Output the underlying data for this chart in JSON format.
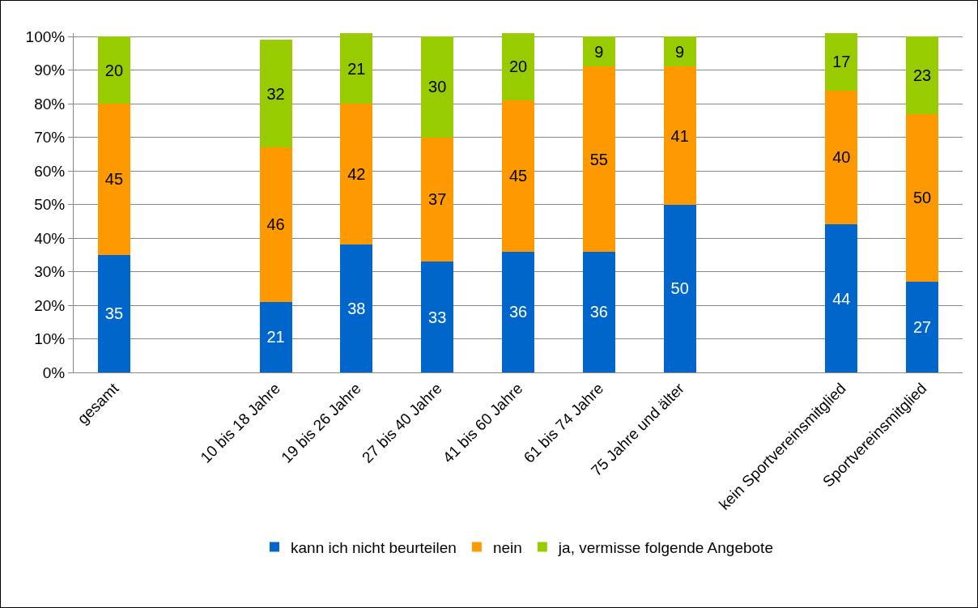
{
  "chart_data": {
    "type": "bar",
    "stacked": true,
    "categories": [
      "gesamt",
      null,
      "10 bis 18 Jahre",
      "19 bis 26 Jahre",
      "27 bis 40 Jahre",
      "41 bis 60 Jahre",
      "61 bis 74 Jahre",
      "75 Jahre und älter",
      null,
      "kein Sportvereinsmitglied",
      "Sportvereinsmitglied"
    ],
    "series": [
      {
        "name": "kann ich nicht beurteilen",
        "color": "#0066cc",
        "values": [
          35,
          null,
          21,
          38,
          33,
          36,
          36,
          50,
          null,
          44,
          27
        ],
        "value_labels": [
          "35",
          null,
          "21",
          "38",
          "33",
          "36",
          "36",
          "50",
          null,
          "44",
          "27"
        ]
      },
      {
        "name": "nein",
        "color": "#ff9900",
        "values": [
          45,
          null,
          46,
          42,
          37,
          45,
          55,
          41,
          null,
          40,
          50
        ],
        "value_labels": [
          "45",
          null,
          "46",
          "42",
          "37",
          "45",
          "55",
          "41",
          null,
          "40",
          "50"
        ]
      },
      {
        "name": "ja, vermisse folgende Angebote",
        "color": "#99cc00",
        "values": [
          20,
          null,
          32,
          21,
          30,
          20,
          9,
          9,
          null,
          17,
          23
        ],
        "value_labels": [
          "20",
          null,
          "32",
          "21",
          "30",
          "20",
          "9",
          "9",
          null,
          "17",
          "23"
        ]
      }
    ],
    "ylim": [
      0,
      101
    ],
    "yticks": [
      {
        "value": 0,
        "label": "0%"
      },
      {
        "value": 10,
        "label": "10%"
      },
      {
        "value": 20,
        "label": "20%"
      },
      {
        "value": 30,
        "label": "30%"
      },
      {
        "value": 40,
        "label": "40%"
      },
      {
        "value": 50,
        "label": "50%"
      },
      {
        "value": 60,
        "label": "60%"
      },
      {
        "value": 70,
        "label": "70%"
      },
      {
        "value": 80,
        "label": "80%"
      },
      {
        "value": 90,
        "label": "90%"
      },
      {
        "value": 100,
        "label": "100%"
      }
    ],
    "grid": "y",
    "legend": "bottom"
  }
}
